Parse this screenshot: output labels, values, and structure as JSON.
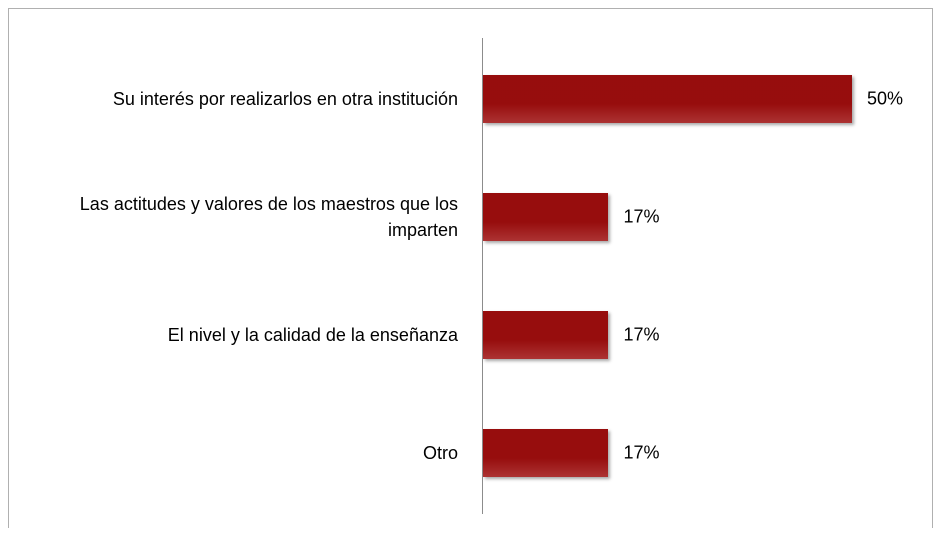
{
  "chart_data": {
    "type": "bar",
    "orientation": "horizontal",
    "categories": [
      "Su interés por realizarlos en otra institución",
      "Las actitudes y valores de los maestros que los imparten",
      "El nivel y la calidad de la enseñanza",
      "Otro"
    ],
    "values": [
      50,
      17,
      17,
      17
    ],
    "value_labels": [
      "50%",
      "17%",
      "17%",
      "17%"
    ],
    "color": "#c43a3a"
  }
}
